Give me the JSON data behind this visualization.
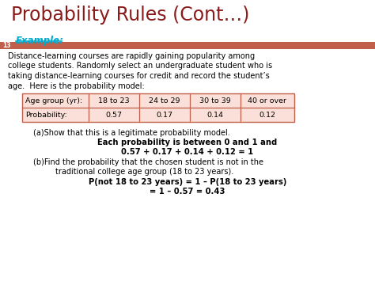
{
  "title": "Probability Rules (Cont…)",
  "title_color": "#8B1A1A",
  "example_label": "Example:",
  "example_color": "#00AACC",
  "slide_number": "13",
  "bar_color": "#C0604A",
  "background_color": "#FFFFFF",
  "body_text_lines": [
    "Distance-learning courses are rapidly gaining popularity among",
    "college students. Randomly select an undergraduate student who is",
    "taking distance-learning courses for credit and record the student’s",
    "age.  Here is the probability model:"
  ],
  "table_headers": [
    "Age group (yr):",
    "18 to 23",
    "24 to 29",
    "30 to 39",
    "40 or over"
  ],
  "table_row": [
    "Probability:",
    "0.57",
    "0.17",
    "0.14",
    "0.12"
  ],
  "table_border_color": "#C0604A",
  "table_bg_color": "#FAE0D8",
  "part_a_normal": "(a)Show that this is a legitimate probability model.",
  "part_a_bold1": "Each probability is between 0 and 1 and",
  "part_a_bold2": "0.57 + 0.17 + 0.14 + 0.12 = 1",
  "part_b_normal1": "(b)Find the probability that the chosen student is not in the",
  "part_b_normal2": "traditional college age group (18 to 23 years).",
  "part_b_bold1": "P(not 18 to 23 years) = 1 – P(18 to 23 years)",
  "part_b_bold2": "= 1 – 0.57 = 0.43",
  "text_color": "#000000"
}
